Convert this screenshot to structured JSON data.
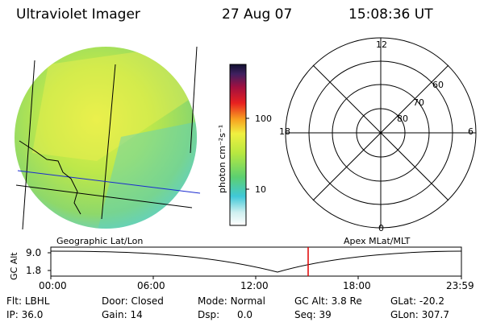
{
  "header": {
    "instrument": "Ultraviolet Imager",
    "date": "27 Aug 07",
    "time": "15:08:36 UT"
  },
  "colorbar": {
    "unit_label": "photon cm⁻²s⁻¹",
    "ticks": [
      "100",
      "10"
    ]
  },
  "polar": {
    "mlt_labels": {
      "top": "12",
      "left": "18",
      "right": "6",
      "bottom": "0"
    },
    "mlat_labels": [
      "60",
      "70",
      "80"
    ]
  },
  "panel_labels": {
    "left": "Geographic Lat/Lon",
    "right": "Apex MLat/MLT"
  },
  "orbit": {
    "ylabel": "GC Alt",
    "yticks": [
      "9.0",
      "1.8"
    ],
    "xticks": [
      "00:00",
      "06:00",
      "12:00",
      "18:00",
      "23:59"
    ],
    "marker_color": "#e00000"
  },
  "info": {
    "row1": [
      {
        "label": "Flt:",
        "value": "LBHL"
      },
      {
        "label": "Door:",
        "value": "Closed"
      },
      {
        "label": "Mode:",
        "value": "Normal"
      },
      {
        "label": "GC Alt:",
        "value": "3.8 Re"
      },
      {
        "label": "GLat:",
        "value": "-20.2"
      }
    ],
    "row2": [
      {
        "label": "IP:",
        "value": "36.0"
      },
      {
        "label": "Gain:",
        "value": "14"
      },
      {
        "label": "Dsp:",
        "value": "0.0"
      },
      {
        "label": "Seq:",
        "value": "39"
      },
      {
        "label": "GLon:",
        "value": "307.7"
      }
    ]
  }
}
